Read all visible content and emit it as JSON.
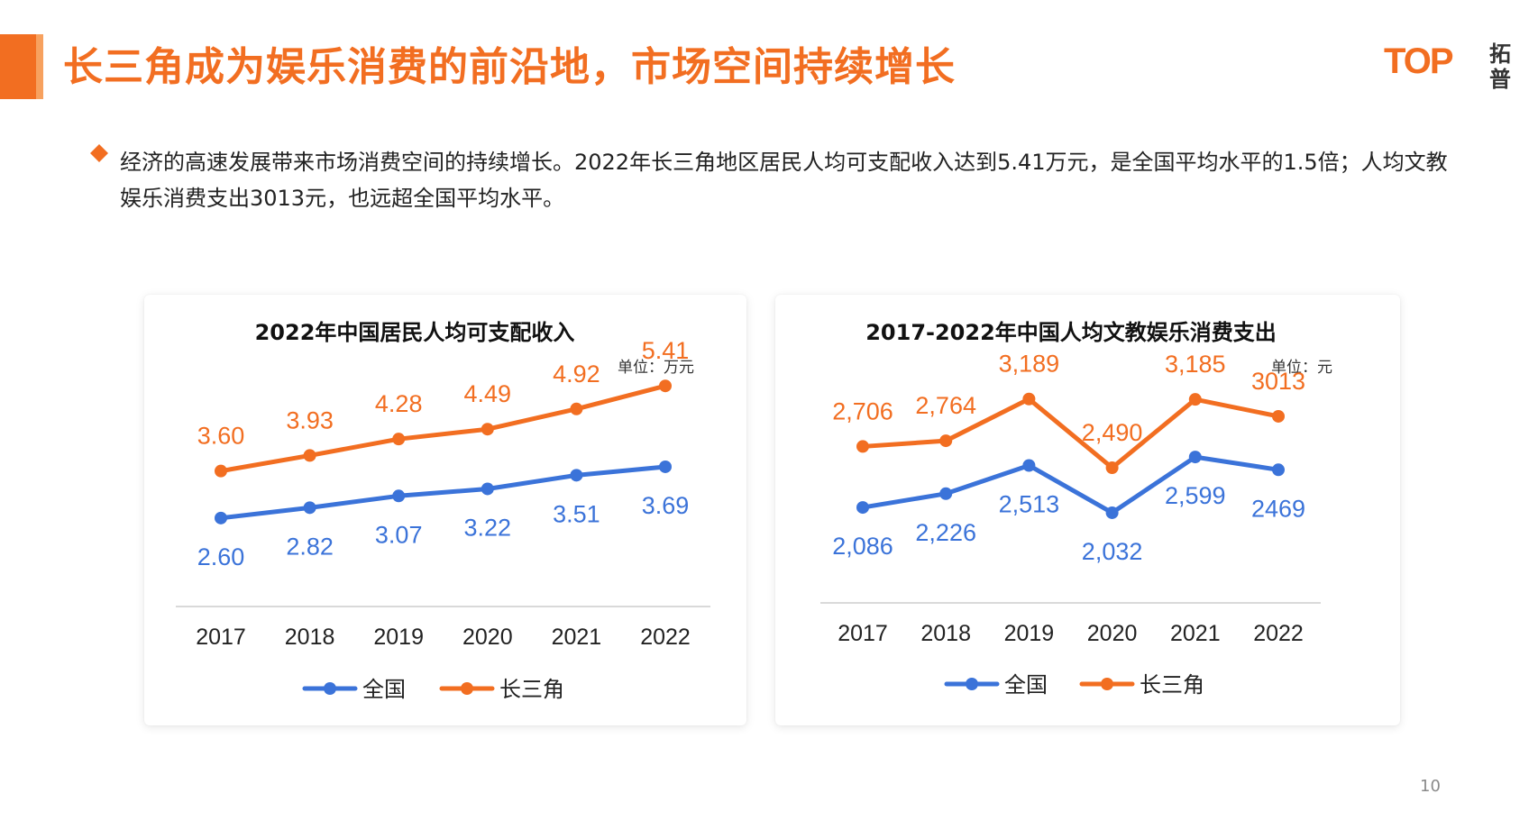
{
  "page": {
    "title": "长三角成为娱乐消费的前沿地，市场空间持续增长",
    "intro": "经济的高速发展带来市场消费空间的持续增长。2022年长三角地区居民人均可支配收入达到5.41万元，是全国平均水平的1.5倍；人均文教娱乐消费支出3013元，也远超全国平均水平。",
    "page_number": "10",
    "logo": {
      "mark": "TOP",
      "cn_top": "拓",
      "cn_bottom": "普"
    }
  },
  "colors": {
    "accent": "#f26e21",
    "national": "#3b73d9",
    "delta": "#f26e21"
  },
  "icons": [
    "diamond-bullet-icon",
    "top-logo-icon"
  ],
  "chart_data": [
    {
      "type": "line",
      "title": "2022年中国居民人均可支配收入",
      "unit": "单位：万元",
      "categories": [
        "2017",
        "2018",
        "2019",
        "2020",
        "2021",
        "2022"
      ],
      "series": [
        {
          "name": "全国",
          "values": [
            2.6,
            2.82,
            3.07,
            3.22,
            3.51,
            3.69
          ],
          "labels": [
            "2.60",
            "2.82",
            "3.07",
            "3.22",
            "3.51",
            "3.69"
          ],
          "color": "#3b73d9"
        },
        {
          "name": "长三角",
          "values": [
            3.6,
            3.93,
            4.28,
            4.49,
            4.92,
            5.41
          ],
          "labels": [
            "3.60",
            "3.93",
            "4.28",
            "4.49",
            "4.92",
            "5.41"
          ],
          "color": "#f26e21"
        }
      ],
      "legend_position": "bottom",
      "grid": false
    },
    {
      "type": "line",
      "title": "2017-2022年中国人均文教娱乐消费支出",
      "unit": "单位：元",
      "categories": [
        "2017",
        "2018",
        "2019",
        "2020",
        "2021",
        "2022"
      ],
      "series": [
        {
          "name": "全国",
          "values": [
            2086,
            2226,
            2513,
            2032,
            2599,
            2469
          ],
          "labels": [
            "2,086",
            "2,226",
            "2,513",
            "2,032",
            "2,599",
            "2469"
          ],
          "color": "#3b73d9"
        },
        {
          "name": "长三角",
          "values": [
            2706,
            2764,
            3189,
            2490,
            3185,
            3013
          ],
          "labels": [
            "2,706",
            "2,764",
            "3,189",
            "2,490",
            "3,185",
            "3013"
          ],
          "color": "#f26e21"
        }
      ],
      "legend_position": "bottom",
      "grid": false
    }
  ]
}
